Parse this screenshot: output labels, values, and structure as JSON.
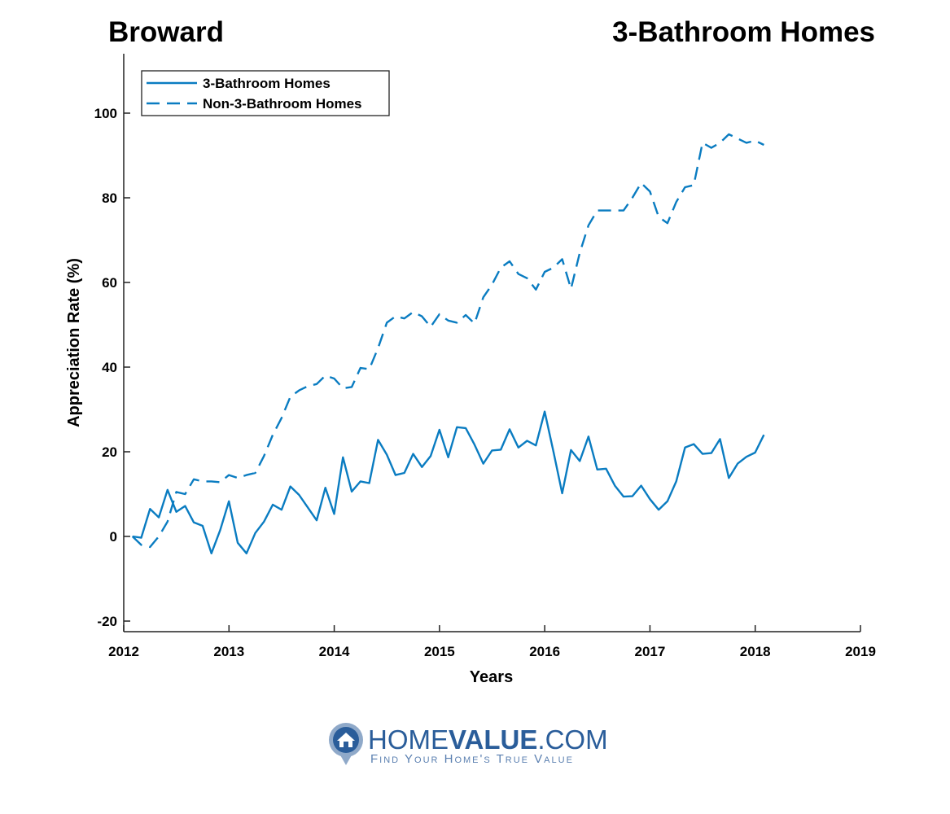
{
  "chart_data": {
    "type": "line",
    "title_left": "Broward",
    "title_right": "3-Bathroom Homes",
    "xlabel": "Years",
    "ylabel": "Appreciation Rate (%)",
    "xlim": [
      2012,
      2019
    ],
    "ylim": [
      -25,
      112
    ],
    "xticks": [
      2012,
      2013,
      2014,
      2015,
      2016,
      2017,
      2018,
      2019
    ],
    "yticks": [
      -20,
      0,
      20,
      40,
      60,
      80,
      100
    ],
    "grid": false,
    "legend_position": "top-left",
    "x_start": 2012.083,
    "x_step": 0.08333,
    "series": [
      {
        "name": "3-Bathroom Homes",
        "style": "solid",
        "color": "#0a7cc1",
        "values": [
          0,
          -0.3,
          6.5,
          4.5,
          11,
          5.8,
          7.2,
          3.3,
          2.5,
          -4,
          1.5,
          8.3,
          -1.5,
          -4,
          0.8,
          3.5,
          7.5,
          6.3,
          11.8,
          9.8,
          6.8,
          3.8,
          11.5,
          5.3,
          18.7,
          10.6,
          13,
          12.6,
          22.8,
          19.3,
          14.5,
          15,
          19.5,
          16.4,
          19,
          25.2,
          18.7,
          25.8,
          25.6,
          21.7,
          17.2,
          20.3,
          20.5,
          25.3,
          21,
          22.6,
          21.5,
          29.5,
          20,
          10.2,
          20.4,
          17.8,
          23.6,
          15.8,
          16,
          12,
          9.4,
          9.5,
          12,
          8.8,
          6.3,
          8.3,
          13,
          21,
          21.8,
          19.5,
          19.7,
          23,
          13.8,
          17.2,
          18.8,
          19.8,
          24
        ]
      },
      {
        "name": "Non-3-Bathroom Homes",
        "style": "dashed",
        "color": "#0a7cc1",
        "values": [
          0,
          -2,
          -2.5,
          0,
          3.5,
          10.5,
          10,
          13.5,
          13,
          13,
          12.8,
          14.5,
          13.8,
          14.5,
          15,
          19,
          24,
          28,
          33,
          34.5,
          35.5,
          36,
          38,
          37.3,
          35,
          35.3,
          39.8,
          39.5,
          44.5,
          50.5,
          52,
          51.5,
          53,
          52,
          49.5,
          52.5,
          51,
          50.5,
          52.3,
          50.3,
          56.5,
          59.5,
          63.5,
          65,
          62,
          61,
          58.3,
          62.5,
          63.5,
          65.5,
          58.5,
          67,
          73.5,
          77,
          77,
          77,
          77,
          80,
          83.5,
          81.5,
          75.5,
          74,
          79,
          82.5,
          83,
          93,
          91.8,
          93,
          95,
          94,
          93,
          93.5,
          92.5
        ]
      }
    ]
  },
  "logo": {
    "name_light": "HOME",
    "name_bold": "VALUE",
    "name_suffix": ".COM",
    "tagline": "Find Your Home's True Value"
  }
}
